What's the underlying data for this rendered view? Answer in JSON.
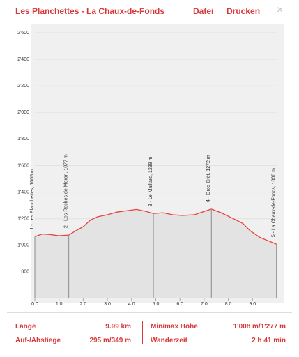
{
  "header": {
    "title": "Les Planchettes - La Chaux-de-Fonds",
    "menu": [
      "Datei",
      "Drucken"
    ],
    "close": "×"
  },
  "chart_data": {
    "type": "line",
    "x": [
      0,
      0.3,
      0.6,
      1.0,
      1.4,
      1.7,
      2.0,
      2.3,
      2.6,
      3.0,
      3.4,
      3.8,
      4.2,
      4.6,
      4.9,
      5.3,
      5.7,
      6.1,
      6.6,
      7.0,
      7.3,
      7.7,
      8.1,
      8.6,
      8.9,
      9.3,
      9.7,
      9.99
    ],
    "series": [
      {
        "color": "#e8413e",
        "values": [
          1065,
          1085,
          1082,
          1072,
          1077,
          1110,
          1140,
          1190,
          1215,
          1230,
          1250,
          1260,
          1270,
          1255,
          1239,
          1245,
          1230,
          1225,
          1230,
          1255,
          1272,
          1245,
          1210,
          1165,
          1110,
          1060,
          1030,
          1008
        ]
      }
    ],
    "xlim": [
      0,
      10
    ],
    "ylim": [
      600,
      2600
    ],
    "xticks": [
      {
        "value": 0,
        "label": "0.0"
      },
      {
        "value": 1,
        "label": "1.0"
      },
      {
        "value": 2,
        "label": "2.0"
      },
      {
        "value": 3,
        "label": "3.0"
      },
      {
        "value": 4,
        "label": "4.0"
      },
      {
        "value": 5,
        "label": "5.0"
      },
      {
        "value": 6,
        "label": "6.0"
      },
      {
        "value": 7,
        "label": "7.0"
      },
      {
        "value": 8,
        "label": "8.0"
      },
      {
        "value": 9,
        "label": "9.0"
      }
    ],
    "yticks": [
      800,
      {
        "value": 1000,
        "label": "1'000"
      },
      {
        "value": 1200,
        "label": "1'200"
      },
      {
        "value": 1400,
        "label": "1'400"
      },
      {
        "value": 1600,
        "label": "1'600"
      },
      {
        "value": 1800,
        "label": "1'800"
      },
      {
        "value": 2000,
        "label": "2'000"
      },
      {
        "value": 2200,
        "label": "2'200"
      },
      {
        "value": 2400,
        "label": "2'400"
      },
      {
        "value": 2600,
        "label": "2'600"
      }
    ],
    "grid": true,
    "annotations": [
      {
        "x": 0,
        "y": 1065,
        "label": "1 - Les Planchettes, 1065 m"
      },
      {
        "x": 1.4,
        "y": 1077,
        "label": "2 - Les Roches de Moron, 1077 m"
      },
      {
        "x": 4.9,
        "y": 1239,
        "label": "3 - Le Maillard, 1239 m"
      },
      {
        "x": 7.3,
        "y": 1272,
        "label": "4 - Gros Crêt, 1272 m"
      },
      {
        "x": 9.99,
        "y": 1008,
        "label": "5 - La Chaux-de-Fonds, 1008 m"
      }
    ]
  },
  "stats": [
    [
      "Länge",
      "9.99 km"
    ],
    [
      "Auf-/Abstiege",
      "295 m/349 m"
    ],
    [
      "Min/max Höhe",
      "1'008 m/1'277 m"
    ],
    [
      "Wanderzeit",
      "2 h 41 min"
    ]
  ]
}
